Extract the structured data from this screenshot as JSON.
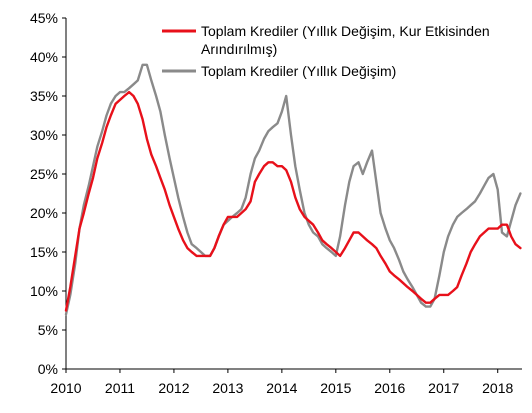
{
  "chart_data": {
    "type": "line",
    "title": "",
    "xlabel": "",
    "ylabel": "",
    "x_ticks": [
      "2010",
      "2011",
      "2012",
      "2013",
      "2014",
      "2015",
      "2016",
      "2017",
      "2018"
    ],
    "y_ticks": [
      "0%",
      "5%",
      "10%",
      "15%",
      "20%",
      "25%",
      "30%",
      "35%",
      "40%",
      "45%"
    ],
    "xlim": [
      2010,
      2018.45
    ],
    "ylim": [
      0,
      45
    ],
    "grid": false,
    "legend_position": "top-right",
    "series": [
      {
        "name": "Toplam Krediler (Yıllık Değişim, Kur Etkisinden Arındırılmış)",
        "name_lines": [
          "Toplam Krediler (Yıllık Değişim, Kur Etkisinden",
          "Arındırılmış)"
        ],
        "color": "#e8101a",
        "x": [
          2010.0,
          2010.08,
          2010.17,
          2010.25,
          2010.33,
          2010.42,
          2010.5,
          2010.58,
          2010.67,
          2010.75,
          2010.83,
          2010.92,
          2011.0,
          2011.08,
          2011.17,
          2011.25,
          2011.33,
          2011.42,
          2011.5,
          2011.58,
          2011.67,
          2011.75,
          2011.83,
          2011.92,
          2012.0,
          2012.08,
          2012.17,
          2012.25,
          2012.33,
          2012.42,
          2012.5,
          2012.58,
          2012.67,
          2012.75,
          2012.83,
          2012.92,
          2013.0,
          2013.08,
          2013.17,
          2013.25,
          2013.33,
          2013.42,
          2013.5,
          2013.58,
          2013.67,
          2013.75,
          2013.83,
          2013.92,
          2014.0,
          2014.08,
          2014.17,
          2014.25,
          2014.33,
          2014.42,
          2014.5,
          2014.58,
          2014.67,
          2014.75,
          2014.83,
          2014.92,
          2015.0,
          2015.08,
          2015.17,
          2015.25,
          2015.33,
          2015.42,
          2015.5,
          2015.58,
          2015.67,
          2015.75,
          2015.83,
          2015.92,
          2016.0,
          2016.08,
          2016.17,
          2016.25,
          2016.33,
          2016.42,
          2016.5,
          2016.58,
          2016.67,
          2016.75,
          2016.83,
          2016.92,
          2017.0,
          2017.08,
          2017.17,
          2017.25,
          2017.33,
          2017.42,
          2017.5,
          2017.58,
          2017.67,
          2017.75,
          2017.83,
          2017.92,
          2018.0,
          2018.08,
          2018.17,
          2018.25,
          2018.33,
          2018.42
        ],
        "values": [
          7.5,
          10.5,
          14.5,
          18.0,
          20.0,
          22.5,
          24.5,
          27.0,
          29.0,
          31.0,
          32.5,
          34.0,
          34.5,
          35.0,
          35.5,
          35.0,
          34.0,
          32.0,
          29.5,
          27.5,
          26.0,
          24.5,
          23.0,
          21.0,
          19.5,
          18.0,
          16.5,
          15.5,
          15.0,
          14.5,
          14.5,
          14.5,
          14.5,
          15.5,
          17.0,
          18.5,
          19.5,
          19.5,
          19.5,
          20.0,
          20.5,
          21.5,
          24.0,
          25.0,
          26.0,
          26.5,
          26.5,
          26.0,
          26.0,
          25.5,
          24.0,
          22.0,
          20.5,
          19.5,
          19.0,
          18.5,
          17.5,
          16.5,
          16.0,
          15.5,
          15.0,
          14.5,
          15.5,
          16.5,
          17.5,
          17.5,
          17.0,
          16.5,
          16.0,
          15.5,
          14.5,
          13.5,
          12.5,
          12.0,
          11.5,
          11.0,
          10.5,
          10.0,
          9.5,
          9.0,
          8.5,
          8.5,
          9.0,
          9.5,
          9.5,
          9.5,
          10.0,
          10.5,
          12.0,
          13.5,
          15.0,
          16.0,
          17.0,
          17.5,
          18.0,
          18.0,
          18.0,
          18.5,
          18.5,
          17.0,
          16.0,
          15.5
        ]
      },
      {
        "name": "Toplam Krediler (Yıllık Değişim)",
        "name_lines": [
          "Toplam Krediler (Yıllık Değişim)"
        ],
        "color": "#8a8a8a",
        "x": [
          2010.0,
          2010.08,
          2010.17,
          2010.25,
          2010.33,
          2010.42,
          2010.5,
          2010.58,
          2010.67,
          2010.75,
          2010.83,
          2010.92,
          2011.0,
          2011.08,
          2011.17,
          2011.25,
          2011.33,
          2011.42,
          2011.5,
          2011.58,
          2011.67,
          2011.75,
          2011.83,
          2011.92,
          2012.0,
          2012.08,
          2012.17,
          2012.25,
          2012.33,
          2012.42,
          2012.5,
          2012.58,
          2012.67,
          2012.75,
          2012.83,
          2012.92,
          2013.0,
          2013.08,
          2013.17,
          2013.25,
          2013.33,
          2013.42,
          2013.5,
          2013.58,
          2013.67,
          2013.75,
          2013.83,
          2013.92,
          2014.0,
          2014.08,
          2014.17,
          2014.25,
          2014.33,
          2014.42,
          2014.5,
          2014.58,
          2014.67,
          2014.75,
          2014.83,
          2014.92,
          2015.0,
          2015.08,
          2015.17,
          2015.25,
          2015.33,
          2015.42,
          2015.5,
          2015.58,
          2015.67,
          2015.75,
          2015.83,
          2015.92,
          2016.0,
          2016.08,
          2016.17,
          2016.25,
          2016.33,
          2016.42,
          2016.5,
          2016.58,
          2016.67,
          2016.75,
          2016.83,
          2016.92,
          2017.0,
          2017.08,
          2017.17,
          2017.25,
          2017.33,
          2017.42,
          2017.5,
          2017.58,
          2017.67,
          2017.75,
          2017.83,
          2017.92,
          2018.0,
          2018.08,
          2018.17,
          2018.25,
          2018.33,
          2018.42
        ],
        "values": [
          7.0,
          9.5,
          13.5,
          18.0,
          21.0,
          23.5,
          26.0,
          28.5,
          30.5,
          32.5,
          34.0,
          35.0,
          35.5,
          35.5,
          36.0,
          36.5,
          37.0,
          39.0,
          39.0,
          37.0,
          35.0,
          33.0,
          30.0,
          27.0,
          24.5,
          22.0,
          19.5,
          17.5,
          16.0,
          15.5,
          15.0,
          14.5,
          14.5,
          15.5,
          17.0,
          18.5,
          19.0,
          19.5,
          20.0,
          20.5,
          22.0,
          25.0,
          27.0,
          28.0,
          29.5,
          30.5,
          31.0,
          31.5,
          33.0,
          35.0,
          30.0,
          26.0,
          23.0,
          20.0,
          18.5,
          17.5,
          17.0,
          16.0,
          15.5,
          15.0,
          14.5,
          17.0,
          21.0,
          24.0,
          26.0,
          26.5,
          25.0,
          26.5,
          28.0,
          24.0,
          20.0,
          18.0,
          16.5,
          15.5,
          14.0,
          12.5,
          11.5,
          10.5,
          9.5,
          8.5,
          8.0,
          8.0,
          9.0,
          12.0,
          15.0,
          17.0,
          18.5,
          19.5,
          20.0,
          20.5,
          21.0,
          21.5,
          22.5,
          23.5,
          24.5,
          25.0,
          23.0,
          17.5,
          17.0,
          19.0,
          21.0,
          22.5
        ]
      }
    ]
  }
}
